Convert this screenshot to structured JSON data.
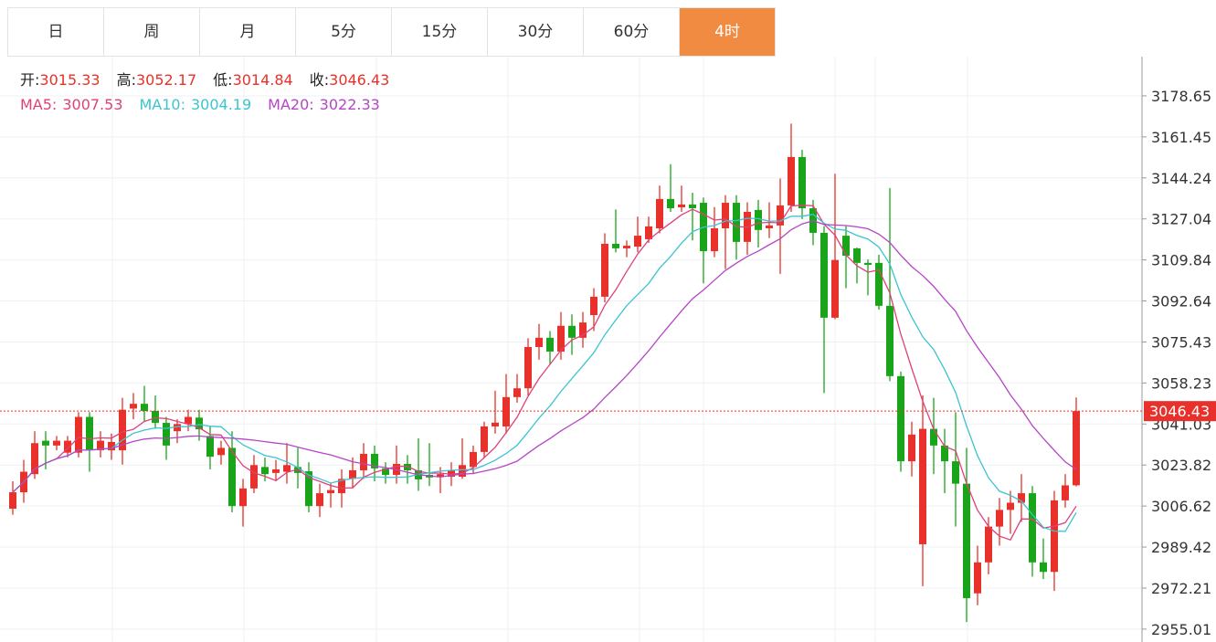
{
  "tabs": [
    "日",
    "周",
    "月",
    "5分",
    "15分",
    "30分",
    "60分",
    "4时"
  ],
  "active_tab": 7,
  "chart_data": {
    "type": "candlestick",
    "info": [
      {
        "label": "开:",
        "value": 3015.33
      },
      {
        "label": "高:",
        "value": 3052.17
      },
      {
        "label": "低:",
        "value": 3014.84
      },
      {
        "label": "收:",
        "value": 3046.43
      }
    ],
    "ma": [
      {
        "name": "MA5:",
        "period": 5,
        "value": 3007.53,
        "color": "#e0407a"
      },
      {
        "name": "MA10:",
        "period": 10,
        "value": 3004.19,
        "color": "#3cc4d0"
      },
      {
        "name": "MA20:",
        "period": 20,
        "value": 3022.33,
        "color": "#b545c6"
      }
    ],
    "up_color": "#e8312a",
    "down_color": "#1aa41a",
    "last_price": 3046.43,
    "ylim": [
      2949.6,
      3195.1
    ],
    "yticks": [
      3178.65,
      3161.45,
      3144.24,
      3127.04,
      3109.84,
      3092.64,
      3075.43,
      3058.23,
      3041.03,
      3023.82,
      3006.62,
      2989.42,
      2972.21,
      2955.01
    ],
    "open": [
      3005.5,
      3012.4,
      3020,
      3034,
      3032,
      3029,
      3029,
      3044,
      3030,
      3030,
      3030,
      3047.5,
      3049.5,
      3046.5,
      3041.5,
      3038,
      3041,
      3043.7,
      3036,
      3028,
      3031,
      3006.6,
      3014,
      3023,
      3020.5,
      3021,
      3023,
      3021.2,
      3006.6,
      3012,
      3012,
      3018,
      3021.6,
      3028.5,
      3022.4,
      3019.7,
      3024.3,
      3021.6,
      3019.7,
      3018.9,
      3018.9,
      3018.9,
      3023,
      3029.3,
      3040,
      3040,
      3052.3,
      3056,
      3073.3,
      3077.2,
      3071.4,
      3082.2,
      3077.2,
      3086.7,
      3094.4,
      3116.6,
      3114.7,
      3115.4,
      3118.5,
      3123.1,
      3135.4,
      3131.9,
      3133.1,
      3133.8,
      3113.5,
      3123.1,
      3133.8,
      3117.4,
      3130.8,
      3123.1,
      3124.3,
      3132.7,
      3153,
      3131.5,
      3121.2,
      3085.6,
      3120,
      3114.7,
      3108.6,
      3108.6,
      3090.6,
      3061.1,
      3025.4,
      2990.6,
      3039,
      3032,
      3025.4,
      3016,
      2970,
      2983,
      2998,
      3005,
      3008,
      3012,
      2983,
      2979,
      3009,
      3015.33
    ],
    "high": [
      3017,
      3026,
      3038,
      3038,
      3036,
      3036,
      3046,
      3046,
      3038,
      3037,
      3052,
      3054,
      3057,
      3053,
      3044,
      3043,
      3047,
      3047,
      3040,
      3034,
      3038,
      3018,
      3028,
      3027,
      3026,
      3033,
      3031,
      3025,
      3016,
      3016,
      3022,
      3027,
      3033,
      3032,
      3025,
      3032,
      3028,
      3035,
      3033,
      3023,
      3025,
      3035,
      3032,
      3042,
      3055,
      3062,
      3062,
      3077,
      3083,
      3080,
      3088,
      3087,
      3088,
      3098,
      3121,
      3131,
      3118,
      3128,
      3128,
      3141,
      3150,
      3141,
      3138,
      3136,
      3132,
      3137,
      3137,
      3134,
      3135,
      3134,
      3144,
      3167,
      3156,
      3135,
      3124,
      3146,
      3124,
      3115,
      3110,
      3112,
      3140,
      3063,
      3042,
      3053,
      3052,
      3039,
      3046,
      3031,
      2990,
      3002,
      3010,
      3013,
      3020,
      3015,
      2993,
      3013,
      3020,
      3052.17
    ],
    "low": [
      3003,
      3008,
      3018,
      3022,
      3030,
      3027,
      3027,
      3021,
      3027,
      3026,
      3024,
      3043,
      3042,
      3039,
      3026,
      3033,
      3038,
      3034,
      3022,
      3024,
      3004,
      2998,
      3012,
      3017,
      3017,
      3016,
      3014,
      3004,
      3002,
      3006,
      3006,
      3014,
      3018,
      3017,
      3016,
      3016,
      3016,
      3013,
      3015,
      3012,
      3015,
      3018,
      3020,
      3027,
      3037,
      3037,
      3050,
      3053,
      3068,
      3066,
      3068,
      3070,
      3073,
      3080,
      3092,
      3113,
      3111,
      3113,
      3117,
      3121,
      3130,
      3130,
      3118,
      3100,
      3111,
      3106,
      3110,
      3112,
      3115,
      3119,
      3104,
      3130,
      3127,
      3116,
      3054,
      3085,
      3098,
      3100,
      3095,
      3089,
      3059,
      3021,
      3019,
      2973,
      3020,
      3012,
      2998,
      2958,
      2965,
      2978,
      2990,
      2995,
      3000,
      2977,
      2976,
      2971,
      3006,
      3014.84
    ],
    "close": [
      3012.4,
      3021,
      3033,
      3032,
      3034,
      3034,
      3044,
      3030,
      3034,
      3033.5,
      3047,
      3049.5,
      3046.5,
      3041.5,
      3032,
      3041,
      3044,
      3038.8,
      3027.3,
      3031,
      3006.6,
      3014,
      3023.8,
      3020,
      3022,
      3023.8,
      3020.5,
      3006.6,
      3012,
      3013.3,
      3018,
      3021.6,
      3028.5,
      3022.4,
      3019.7,
      3024.3,
      3021.6,
      3017.8,
      3018.6,
      3020,
      3021.6,
      3023.8,
      3029.3,
      3040,
      3041.6,
      3052.3,
      3056,
      3073.3,
      3077.2,
      3071.4,
      3082.2,
      3077.2,
      3083.6,
      3094.4,
      3116.6,
      3114.7,
      3115.8,
      3120,
      3123.9,
      3135.4,
      3131.5,
      3133.1,
      3131.5,
      3113.5,
      3123.1,
      3133.8,
      3117.4,
      3130,
      3122.4,
      3124.3,
      3132.7,
      3153,
      3131.5,
      3121.2,
      3085.6,
      3109.8,
      3111.6,
      3108.6,
      3107.8,
      3090.6,
      3061.1,
      3025.4,
      3036.6,
      3039,
      3032,
      3025.4,
      3016,
      2968,
      2983,
      2998,
      3005,
      3008,
      3012,
      2983,
      2979,
      3009,
      3015.3,
      3046.43
    ]
  }
}
